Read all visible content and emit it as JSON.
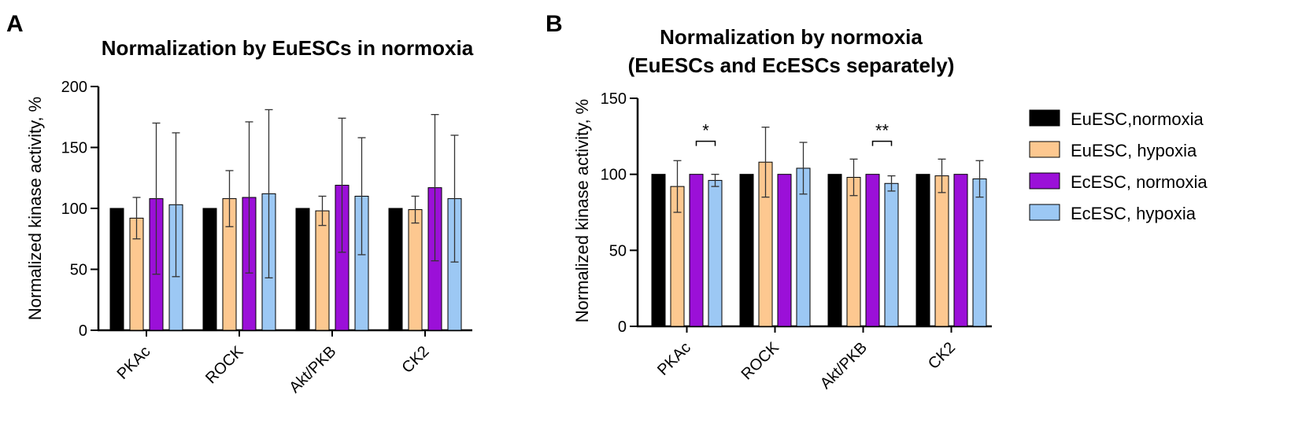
{
  "colors": {
    "EuESC,normoxia": "#000000",
    "EuESC, hypoxia": "#fdc890",
    "EcESC, normoxia": "#9b10d8",
    "EcESC, hypoxia": "#9cc8f4"
  },
  "legend": {
    "entries": [
      "EuESC,normoxia",
      "EuESC, hypoxia",
      "EcESC, normoxia",
      "EcESC, hypoxia"
    ]
  },
  "chart_data": [
    {
      "panel": "A",
      "type": "bar",
      "title": "Normalization by EuESCs in normoxia",
      "xlabel": "",
      "ylabel": "Normalized kinase activity, %",
      "ylim": [
        0,
        200
      ],
      "yticks": [
        0,
        50,
        100,
        150,
        200
      ],
      "categories": [
        "PKAc",
        "ROCK",
        "Akt/PKB",
        "CK2"
      ],
      "series": [
        {
          "name": "EuESC,normoxia",
          "values": [
            100,
            100,
            100,
            100
          ],
          "errors": [
            0,
            0,
            0,
            0
          ]
        },
        {
          "name": "EuESC, hypoxia",
          "values": [
            92,
            108,
            98,
            99
          ],
          "errors": [
            17,
            23,
            12,
            11
          ]
        },
        {
          "name": "EcESC, normoxia",
          "values": [
            108,
            109,
            119,
            117
          ],
          "errors": [
            62,
            62,
            55,
            60
          ]
        },
        {
          "name": "EcESC, hypoxia",
          "values": [
            103,
            112,
            110,
            108
          ],
          "errors": [
            59,
            69,
            48,
            52
          ]
        }
      ],
      "annotations": []
    },
    {
      "panel": "B",
      "type": "bar",
      "title": "Normalization by normoxia",
      "subtitle": "(EuESCs and EcESCs separately)",
      "xlabel": "",
      "ylabel": "Normalized kinase activity, %",
      "ylim": [
        0,
        150
      ],
      "yticks": [
        0,
        50,
        100,
        150
      ],
      "categories": [
        "PKAc",
        "ROCK",
        "Akt/PKB",
        "CK2"
      ],
      "series": [
        {
          "name": "EuESC,normoxia",
          "values": [
            100,
            100,
            100,
            100
          ],
          "errors": [
            0,
            0,
            0,
            0
          ]
        },
        {
          "name": "EuESC, hypoxia",
          "values": [
            92,
            108,
            98,
            99
          ],
          "errors": [
            17,
            23,
            12,
            11
          ]
        },
        {
          "name": "EcESC, normoxia",
          "values": [
            100,
            100,
            100,
            100
          ],
          "errors": [
            0,
            0,
            0,
            0
          ]
        },
        {
          "name": "EcESC, hypoxia",
          "values": [
            96,
            104,
            94,
            97
          ],
          "errors": [
            4,
            17,
            5,
            12
          ]
        }
      ],
      "annotations": [
        {
          "text": "*",
          "category": "PKAc"
        },
        {
          "text": "**",
          "category": "Akt/PKB"
        }
      ]
    }
  ]
}
